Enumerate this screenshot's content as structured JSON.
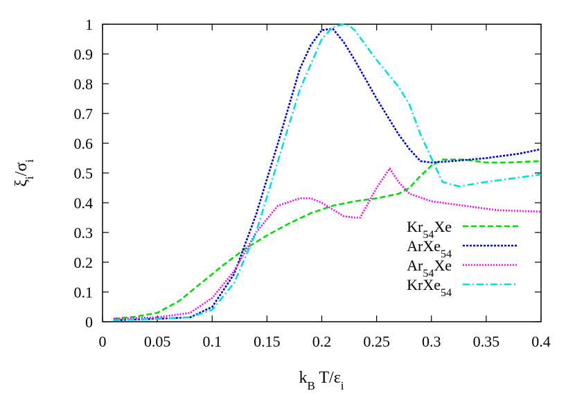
{
  "chart_data": {
    "type": "line",
    "title": "",
    "xlabel": {
      "main": "k",
      "sub": "B",
      "rest": " T/ε",
      "sub2": "i"
    },
    "ylabel": {
      "main": "ξ",
      "sub": "i",
      "rest": "/σ",
      "sub2": "i"
    },
    "xlim": [
      0,
      0.4
    ],
    "ylim": [
      0,
      1
    ],
    "xticks": [
      "0",
      "0.05",
      "0.1",
      "0.15",
      "0.2",
      "0.25",
      "0.3",
      "0.35",
      "0.4"
    ],
    "yticks": [
      "0",
      "0.1",
      "0.2",
      "0.3",
      "0.4",
      "0.5",
      "0.6",
      "0.7",
      "0.8",
      "0.9",
      "1"
    ],
    "grid": false,
    "legend_position": "bottom-right",
    "series": [
      {
        "name_parts": [
          {
            "t": "Kr"
          },
          {
            "t": "54",
            "sub": true
          },
          {
            "t": "Xe"
          }
        ],
        "color": "#00dd00",
        "dash": "8,4",
        "x": [
          0.01,
          0.03,
          0.05,
          0.07,
          0.09,
          0.11,
          0.13,
          0.15,
          0.17,
          0.19,
          0.21,
          0.23,
          0.25,
          0.27,
          0.28,
          0.29,
          0.3,
          0.31,
          0.33,
          0.35,
          0.37,
          0.4
        ],
        "y": [
          0.01,
          0.017,
          0.03,
          0.07,
          0.13,
          0.19,
          0.245,
          0.29,
          0.33,
          0.365,
          0.39,
          0.405,
          0.415,
          0.43,
          0.45,
          0.49,
          0.525,
          0.545,
          0.545,
          0.535,
          0.535,
          0.54
        ]
      },
      {
        "name_parts": [
          {
            "t": "ArXe"
          },
          {
            "t": "54",
            "sub": true
          }
        ],
        "color": "#0000cc",
        "dash": "3,2",
        "x": [
          0.01,
          0.05,
          0.08,
          0.1,
          0.12,
          0.14,
          0.16,
          0.18,
          0.19,
          0.2,
          0.21,
          0.22,
          0.23,
          0.25,
          0.27,
          0.28,
          0.29,
          0.3,
          0.32,
          0.35,
          0.38,
          0.4
        ],
        "y": [
          0.005,
          0.01,
          0.015,
          0.05,
          0.16,
          0.36,
          0.6,
          0.85,
          0.93,
          0.98,
          0.985,
          0.94,
          0.88,
          0.75,
          0.63,
          0.58,
          0.54,
          0.535,
          0.54,
          0.55,
          0.565,
          0.58
        ]
      },
      {
        "name_parts": [
          {
            "t": "Ar"
          },
          {
            "t": "54",
            "sub": true
          },
          {
            "t": "Xe"
          }
        ],
        "color": "#ee00ee",
        "dash": "2,2",
        "x": [
          0.01,
          0.05,
          0.08,
          0.1,
          0.12,
          0.14,
          0.16,
          0.18,
          0.19,
          0.2,
          0.22,
          0.23,
          0.235,
          0.25,
          0.262,
          0.27,
          0.28,
          0.3,
          0.33,
          0.36,
          0.4
        ],
        "y": [
          0.01,
          0.015,
          0.03,
          0.08,
          0.17,
          0.3,
          0.39,
          0.415,
          0.415,
          0.4,
          0.355,
          0.35,
          0.35,
          0.45,
          0.515,
          0.47,
          0.43,
          0.405,
          0.39,
          0.375,
          0.37
        ]
      },
      {
        "name_parts": [
          {
            "t": "KrXe"
          },
          {
            "t": "54",
            "sub": true
          }
        ],
        "color": "#00dddd",
        "dash": "10,4,2,4",
        "x": [
          0.01,
          0.05,
          0.08,
          0.1,
          0.12,
          0.14,
          0.16,
          0.18,
          0.2,
          0.21,
          0.22,
          0.225,
          0.23,
          0.25,
          0.27,
          0.28,
          0.29,
          0.31,
          0.325,
          0.35,
          0.38,
          0.4
        ],
        "y": [
          0.005,
          0.01,
          0.015,
          0.04,
          0.13,
          0.3,
          0.54,
          0.78,
          0.95,
          0.99,
          1.0,
          0.995,
          0.98,
          0.88,
          0.79,
          0.73,
          0.63,
          0.47,
          0.455,
          0.47,
          0.485,
          0.495
        ]
      }
    ]
  }
}
